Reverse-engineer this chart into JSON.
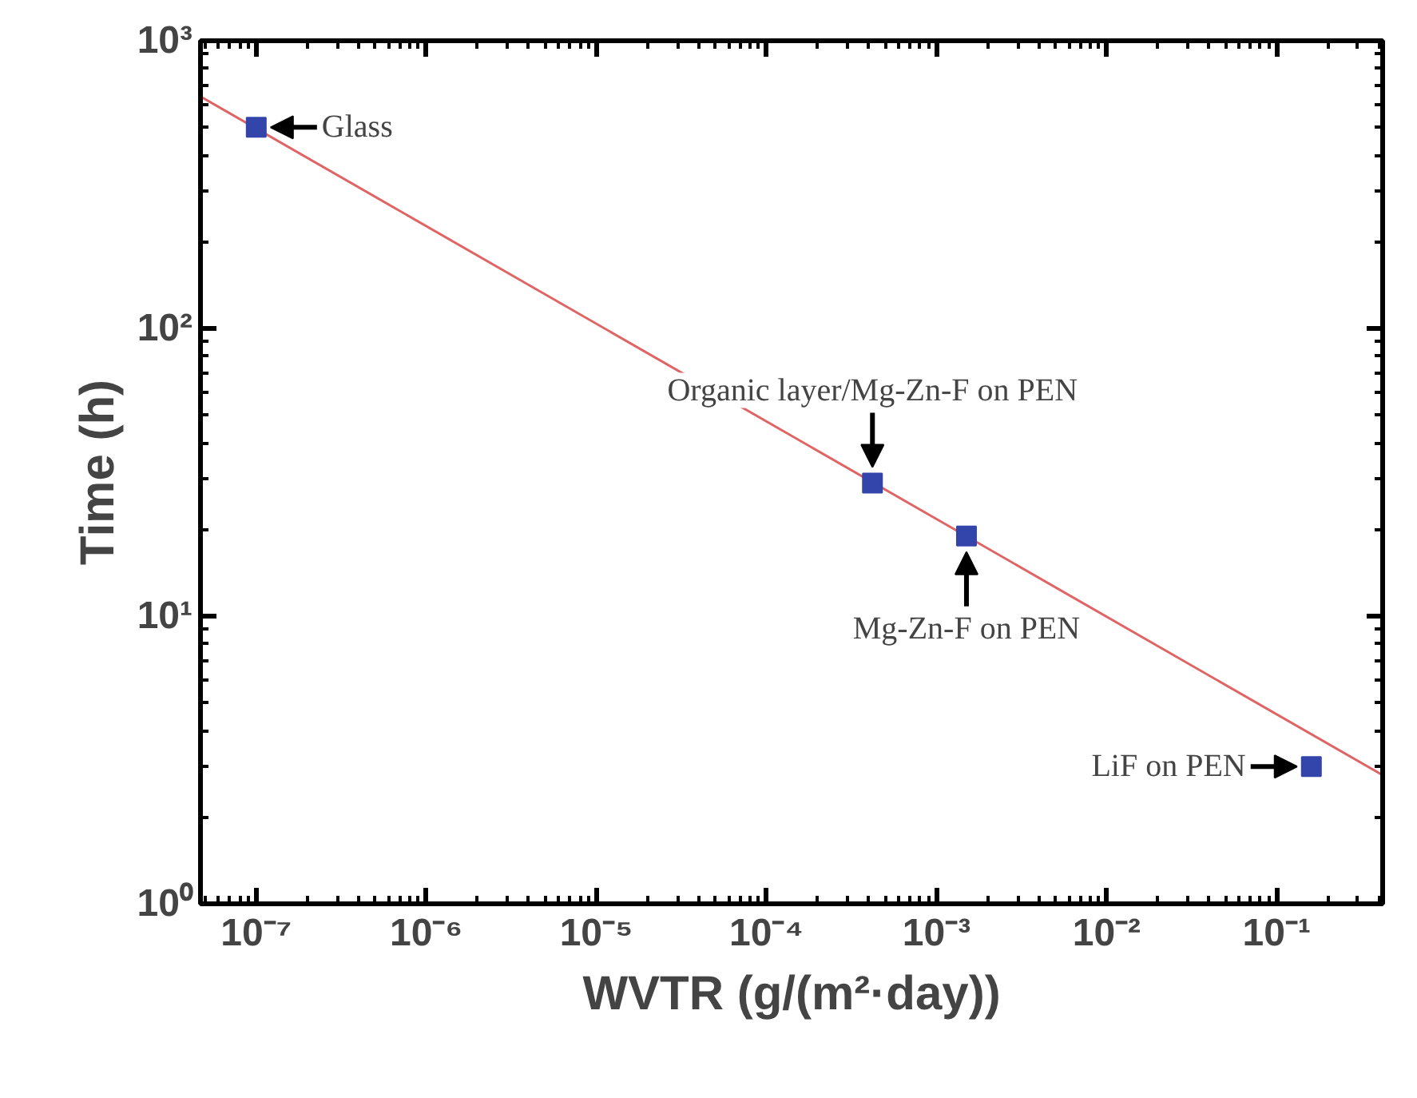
{
  "chart_data": {
    "type": "scatter",
    "xlabel": "WVTR (g/(m²·day))",
    "ylabel": "Time (h)",
    "log": "xy",
    "grid": false,
    "xlim": [
      4.7e-08,
      0.42
    ],
    "ylim": [
      1,
      1000
    ],
    "xticks": [
      {
        "value": 1e-07,
        "label": "10⁻⁷"
      },
      {
        "value": 1e-06,
        "label": "10⁻⁶"
      },
      {
        "value": 1e-05,
        "label": "10⁻⁵"
      },
      {
        "value": 0.0001,
        "label": "10⁻⁴"
      },
      {
        "value": 0.001,
        "label": "10⁻³"
      },
      {
        "value": 0.01,
        "label": "10⁻²"
      },
      {
        "value": 0.1,
        "label": "10⁻¹"
      }
    ],
    "yticks": [
      {
        "value": 1,
        "label": "10⁰"
      },
      {
        "value": 10,
        "label": "10¹"
      },
      {
        "value": 100,
        "label": "10²"
      },
      {
        "value": 1000,
        "label": "10³"
      }
    ],
    "series": [
      {
        "type": "line",
        "color": "#e06464",
        "marker": "none",
        "line_style": "solid",
        "x": [
          4.7e-08,
          0.42
        ],
        "values": [
          640,
          2.8
        ]
      },
      {
        "color": "#3344aa",
        "marker": "square",
        "x": [
          1e-07,
          0.00042,
          0.0015,
          0.16
        ],
        "values": [
          500,
          29,
          19,
          3.0
        ]
      }
    ],
    "annotations": [
      {
        "text": "Glass",
        "x": 1e-07,
        "y": 500
      },
      {
        "text": "Organic layer/Mg-Zn-F on PEN",
        "x": 0.00042,
        "y": 29
      },
      {
        "text": "Mg-Zn-F on PEN",
        "x": 0.0015,
        "y": 19
      },
      {
        "text": "LiF on PEN",
        "x": 0.16,
        "y": 3.0
      }
    ]
  }
}
